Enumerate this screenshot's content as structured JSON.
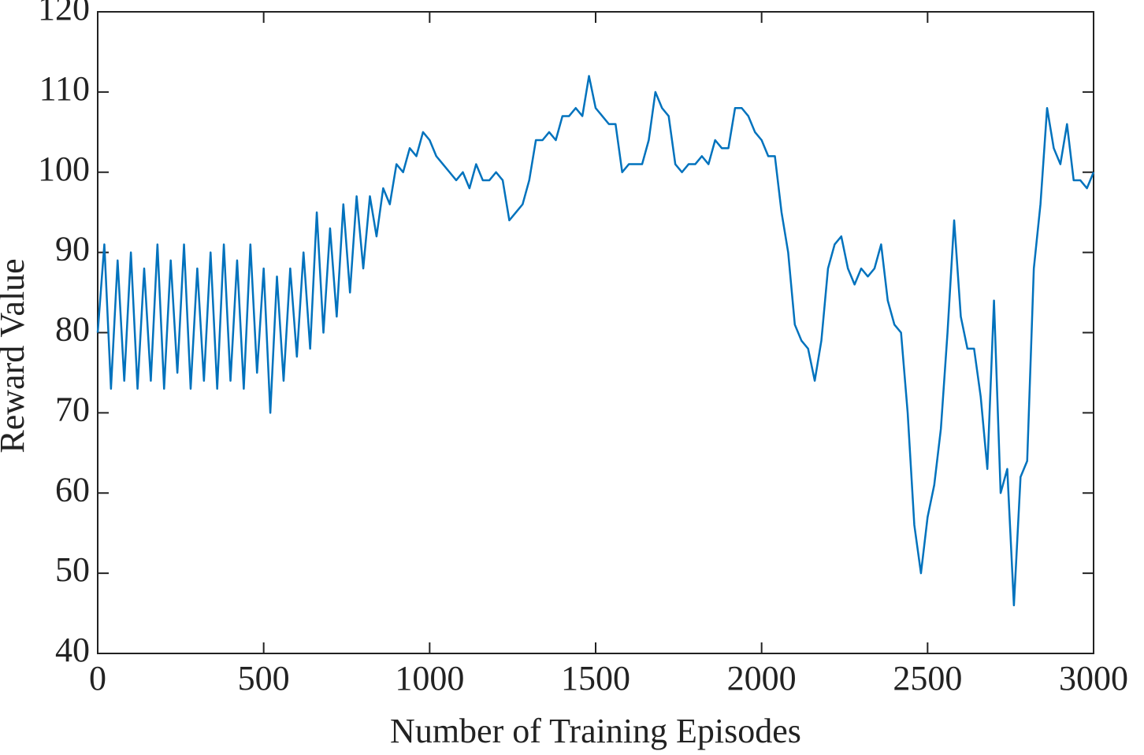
{
  "chart_data": {
    "type": "line",
    "xlabel": "Number of Training Episodes",
    "ylabel": "Reward Value",
    "x": [
      0,
      20,
      40,
      60,
      80,
      100,
      120,
      140,
      160,
      180,
      200,
      220,
      240,
      260,
      280,
      300,
      320,
      340,
      360,
      380,
      400,
      420,
      440,
      460,
      480,
      500,
      520,
      540,
      560,
      580,
      600,
      620,
      640,
      660,
      680,
      700,
      720,
      740,
      760,
      780,
      800,
      820,
      840,
      860,
      880,
      900,
      920,
      940,
      960,
      980,
      1000,
      1020,
      1040,
      1060,
      1080,
      1100,
      1120,
      1140,
      1160,
      1180,
      1200,
      1220,
      1240,
      1260,
      1280,
      1300,
      1320,
      1340,
      1360,
      1380,
      1400,
      1420,
      1440,
      1460,
      1480,
      1500,
      1520,
      1540,
      1560,
      1580,
      1600,
      1620,
      1640,
      1660,
      1680,
      1700,
      1720,
      1740,
      1760,
      1780,
      1800,
      1820,
      1840,
      1860,
      1880,
      1900,
      1920,
      1940,
      1960,
      1980,
      2000,
      2020,
      2040,
      2060,
      2080,
      2100,
      2120,
      2140,
      2160,
      2180,
      2200,
      2220,
      2240,
      2260,
      2280,
      2300,
      2320,
      2340,
      2360,
      2380,
      2400,
      2420,
      2440,
      2460,
      2480,
      2500,
      2520,
      2540,
      2560,
      2580,
      2600,
      2620,
      2640,
      2660,
      2680,
      2700,
      2720,
      2740,
      2760,
      2780,
      2800,
      2820,
      2840,
      2860,
      2880,
      2900,
      2920,
      2940,
      2960,
      2980,
      3000
    ],
    "series": [
      {
        "color": "#0072bd",
        "values": [
          80,
          91,
          73,
          89,
          74,
          90,
          73,
          88,
          74,
          91,
          73,
          89,
          75,
          91,
          73,
          88,
          74,
          90,
          73,
          91,
          74,
          89,
          73,
          91,
          75,
          88,
          70,
          87,
          74,
          88,
          77,
          90,
          78,
          95,
          80,
          93,
          82,
          96,
          85,
          97,
          88,
          97,
          92,
          98,
          96,
          101,
          100,
          103,
          102,
          105,
          104,
          102,
          101,
          100,
          99,
          100,
          98,
          101,
          99,
          99,
          100,
          99,
          94,
          95,
          96,
          99,
          104,
          104,
          105,
          104,
          107,
          107,
          108,
          107,
          112,
          108,
          107,
          106,
          106,
          100,
          101,
          101,
          101,
          104,
          110,
          108,
          107,
          101,
          100,
          101,
          101,
          102,
          101,
          104,
          103,
          103,
          108,
          108,
          107,
          105,
          104,
          102,
          102,
          95,
          90,
          81,
          79,
          78,
          74,
          79,
          88,
          91,
          92,
          88,
          86,
          88,
          87,
          88,
          91,
          84,
          81,
          80,
          70,
          56,
          50,
          57,
          61,
          68,
          80,
          94,
          82,
          78,
          78,
          72,
          63,
          84,
          60,
          63,
          46,
          62,
          64,
          88,
          96,
          108,
          103,
          101,
          106,
          99,
          99,
          98,
          100
        ]
      }
    ],
    "xlim": [
      0,
      3000
    ],
    "xticks": [
      0,
      500,
      1000,
      1500,
      2000,
      2500,
      3000
    ],
    "ylim": [
      40,
      120
    ],
    "yticks": [
      40,
      50,
      60,
      70,
      80,
      90,
      100,
      110,
      120
    ]
  }
}
